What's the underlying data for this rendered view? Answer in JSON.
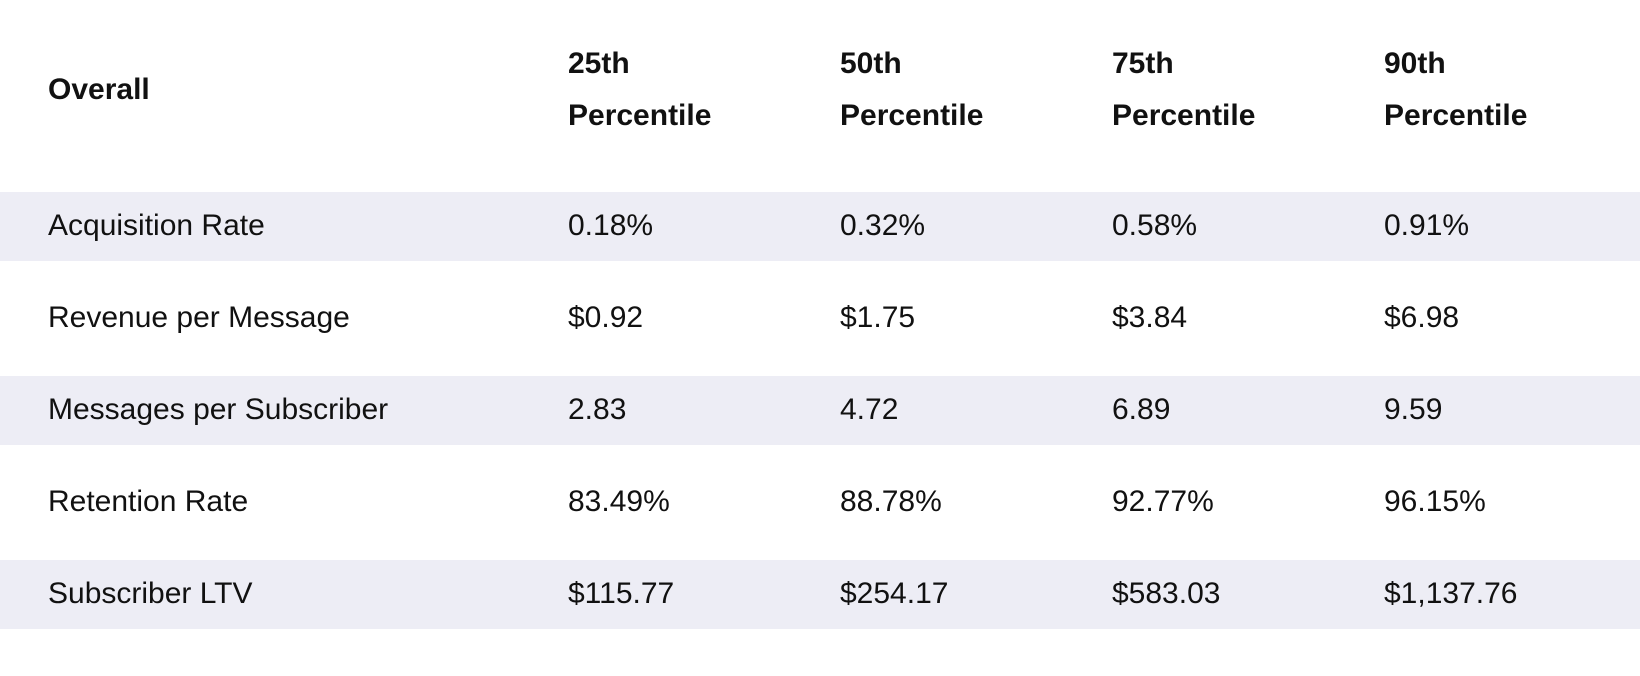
{
  "table": {
    "header": [
      "Overall",
      "25th Percentile",
      "50th Percentile",
      "75th Percentile",
      "90th Percentile"
    ],
    "rows": [
      [
        "Acquisition Rate",
        "0.18%",
        "0.32%",
        "0.58%",
        "0.91%"
      ],
      [
        "Revenue per Message",
        "$0.92",
        "$1.75",
        "$3.84",
        "$6.98"
      ],
      [
        "Messages per Subscriber",
        "2.83",
        "4.72",
        "6.89",
        "9.59"
      ],
      [
        "Retention Rate",
        "83.49%",
        "88.78%",
        "92.77%",
        "96.15%"
      ],
      [
        "Subscriber LTV",
        "$115.77",
        "$254.17",
        "$583.03",
        "$1,137.76"
      ]
    ]
  }
}
